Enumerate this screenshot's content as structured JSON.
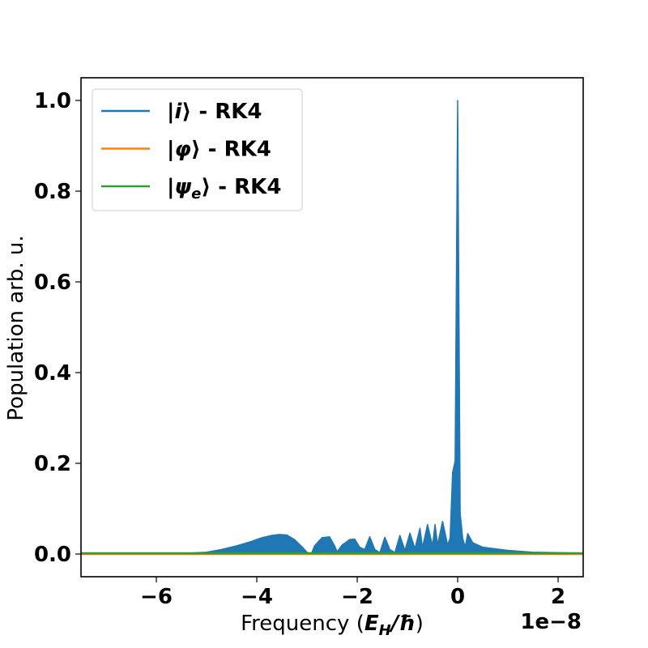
{
  "chart_data": {
    "type": "area",
    "xlabel_prefix": "Frequency (",
    "xlabel_math": "E",
    "xlabel_math_sub": "H",
    "xlabel_math_rest": "/ħ",
    "xlabel_suffix": ")",
    "ylabel": "Population arb. u.",
    "x_offset_label": "1e−8",
    "xlim": [
      -7.5,
      2.5
    ],
    "ylim": [
      -0.05,
      1.05
    ],
    "x_ticks": [
      -6,
      -4,
      -2,
      0,
      2
    ],
    "x_tick_labels": [
      "−6",
      "−4",
      "−2",
      "0",
      "2"
    ],
    "y_ticks": [
      0.0,
      0.2,
      0.4,
      0.6,
      0.8,
      1.0
    ],
    "y_tick_labels": [
      "0.0",
      "0.2",
      "0.4",
      "0.6",
      "0.8",
      "1.0"
    ],
    "legend_position": "upper-left",
    "series": [
      {
        "name_ket": "i",
        "name_sub": "",
        "name_suffix": " - RK4",
        "color": "#1f77b4",
        "envelope": {
          "x": [
            -7.5,
            -5.5,
            -5.0,
            -4.7,
            -4.4,
            -4.1,
            -3.9,
            -3.7,
            -3.55,
            -3.4,
            -3.25,
            -3.1,
            -3.0,
            -2.95,
            -2.9,
            -2.85,
            -2.7,
            -2.55,
            -2.45,
            -2.4,
            -2.3,
            -2.15,
            -2.05,
            -1.95,
            -1.85,
            -1.75,
            -1.65,
            -1.55,
            -1.45,
            -1.35,
            -1.25,
            -1.15,
            -1.05,
            -0.95,
            -0.85,
            -0.75,
            -0.7,
            -0.6,
            -0.5,
            -0.45,
            -0.4,
            -0.3,
            -0.2,
            -0.15,
            -0.1,
            -0.05,
            0.0,
            0.05,
            0.1,
            0.15,
            0.2,
            0.3,
            0.5,
            1.0,
            1.5,
            2.5
          ],
          "y": [
            0.0,
            0.001,
            0.004,
            0.01,
            0.018,
            0.028,
            0.036,
            0.041,
            0.043,
            0.042,
            0.032,
            0.016,
            0.004,
            0.0,
            0.004,
            0.018,
            0.036,
            0.038,
            0.018,
            0.005,
            0.02,
            0.032,
            0.033,
            0.015,
            0.01,
            0.038,
            0.01,
            0.003,
            0.037,
            0.01,
            0.003,
            0.041,
            0.008,
            0.046,
            0.012,
            0.057,
            0.014,
            0.065,
            0.018,
            0.065,
            0.02,
            0.072,
            0.02,
            0.035,
            0.18,
            0.205,
            1.0,
            0.09,
            0.035,
            0.015,
            0.045,
            0.025,
            0.015,
            0.008,
            0.004,
            0.002
          ]
        }
      },
      {
        "name_ket": "φ",
        "name_sub": "",
        "name_suffix": " - RK4",
        "color": "#ff7f0e"
      },
      {
        "name_ket": "ψ",
        "name_sub": "e",
        "name_suffix": " - RK4",
        "color": "#2ca02c"
      }
    ]
  }
}
